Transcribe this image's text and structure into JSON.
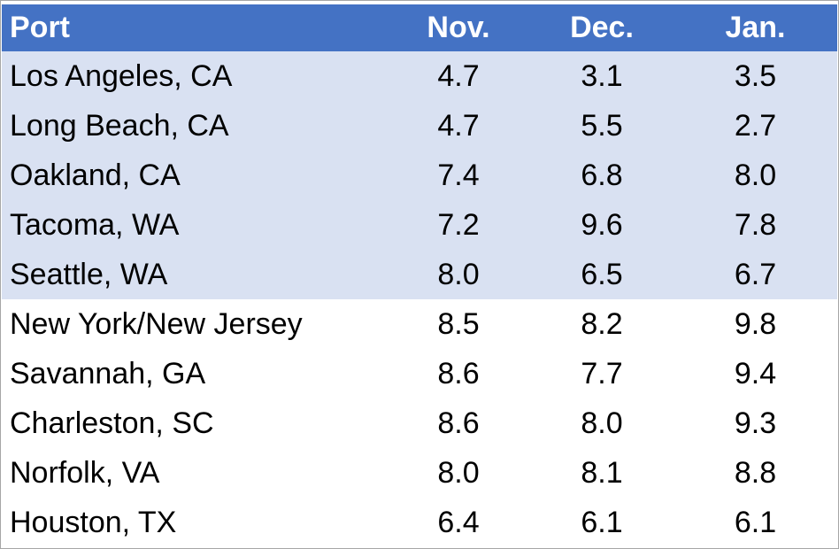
{
  "table": {
    "headers": [
      "Port",
      "Nov.",
      "Dec.",
      "Jan."
    ],
    "rows": [
      {
        "port": "Los Angeles, CA",
        "nov": "4.7",
        "dec": "3.1",
        "jan": "3.5",
        "group": "west"
      },
      {
        "port": "Long Beach, CA",
        "nov": "4.7",
        "dec": "5.5",
        "jan": "2.7",
        "group": "west"
      },
      {
        "port": "Oakland, CA",
        "nov": "7.4",
        "dec": "6.8",
        "jan": "8.0",
        "group": "west"
      },
      {
        "port": "Tacoma, WA",
        "nov": "7.2",
        "dec": "9.6",
        "jan": "7.8",
        "group": "west"
      },
      {
        "port": "Seattle, WA",
        "nov": "8.0",
        "dec": "6.5",
        "jan": "6.7",
        "group": "west"
      },
      {
        "port": "New York/New Jersey",
        "nov": "8.5",
        "dec": "8.2",
        "jan": "9.8",
        "group": "east"
      },
      {
        "port": "Savannah, GA",
        "nov": "8.6",
        "dec": "7.7",
        "jan": "9.4",
        "group": "east"
      },
      {
        "port": "Charleston, SC",
        "nov": "8.6",
        "dec": "8.0",
        "jan": "9.3",
        "group": "east"
      },
      {
        "port": "Norfolk, VA",
        "nov": "8.0",
        "dec": "8.1",
        "jan": "8.8",
        "group": "east"
      },
      {
        "port": "Houston, TX",
        "nov": "6.4",
        "dec": "6.1",
        "jan": "6.1",
        "group": "east"
      }
    ]
  },
  "colors": {
    "header_bg": "#4472c4",
    "header_text": "#ffffff",
    "highlight_row_bg": "#d9e1f2",
    "plain_row_bg": "#ffffff",
    "border": "#a6a6a6"
  }
}
